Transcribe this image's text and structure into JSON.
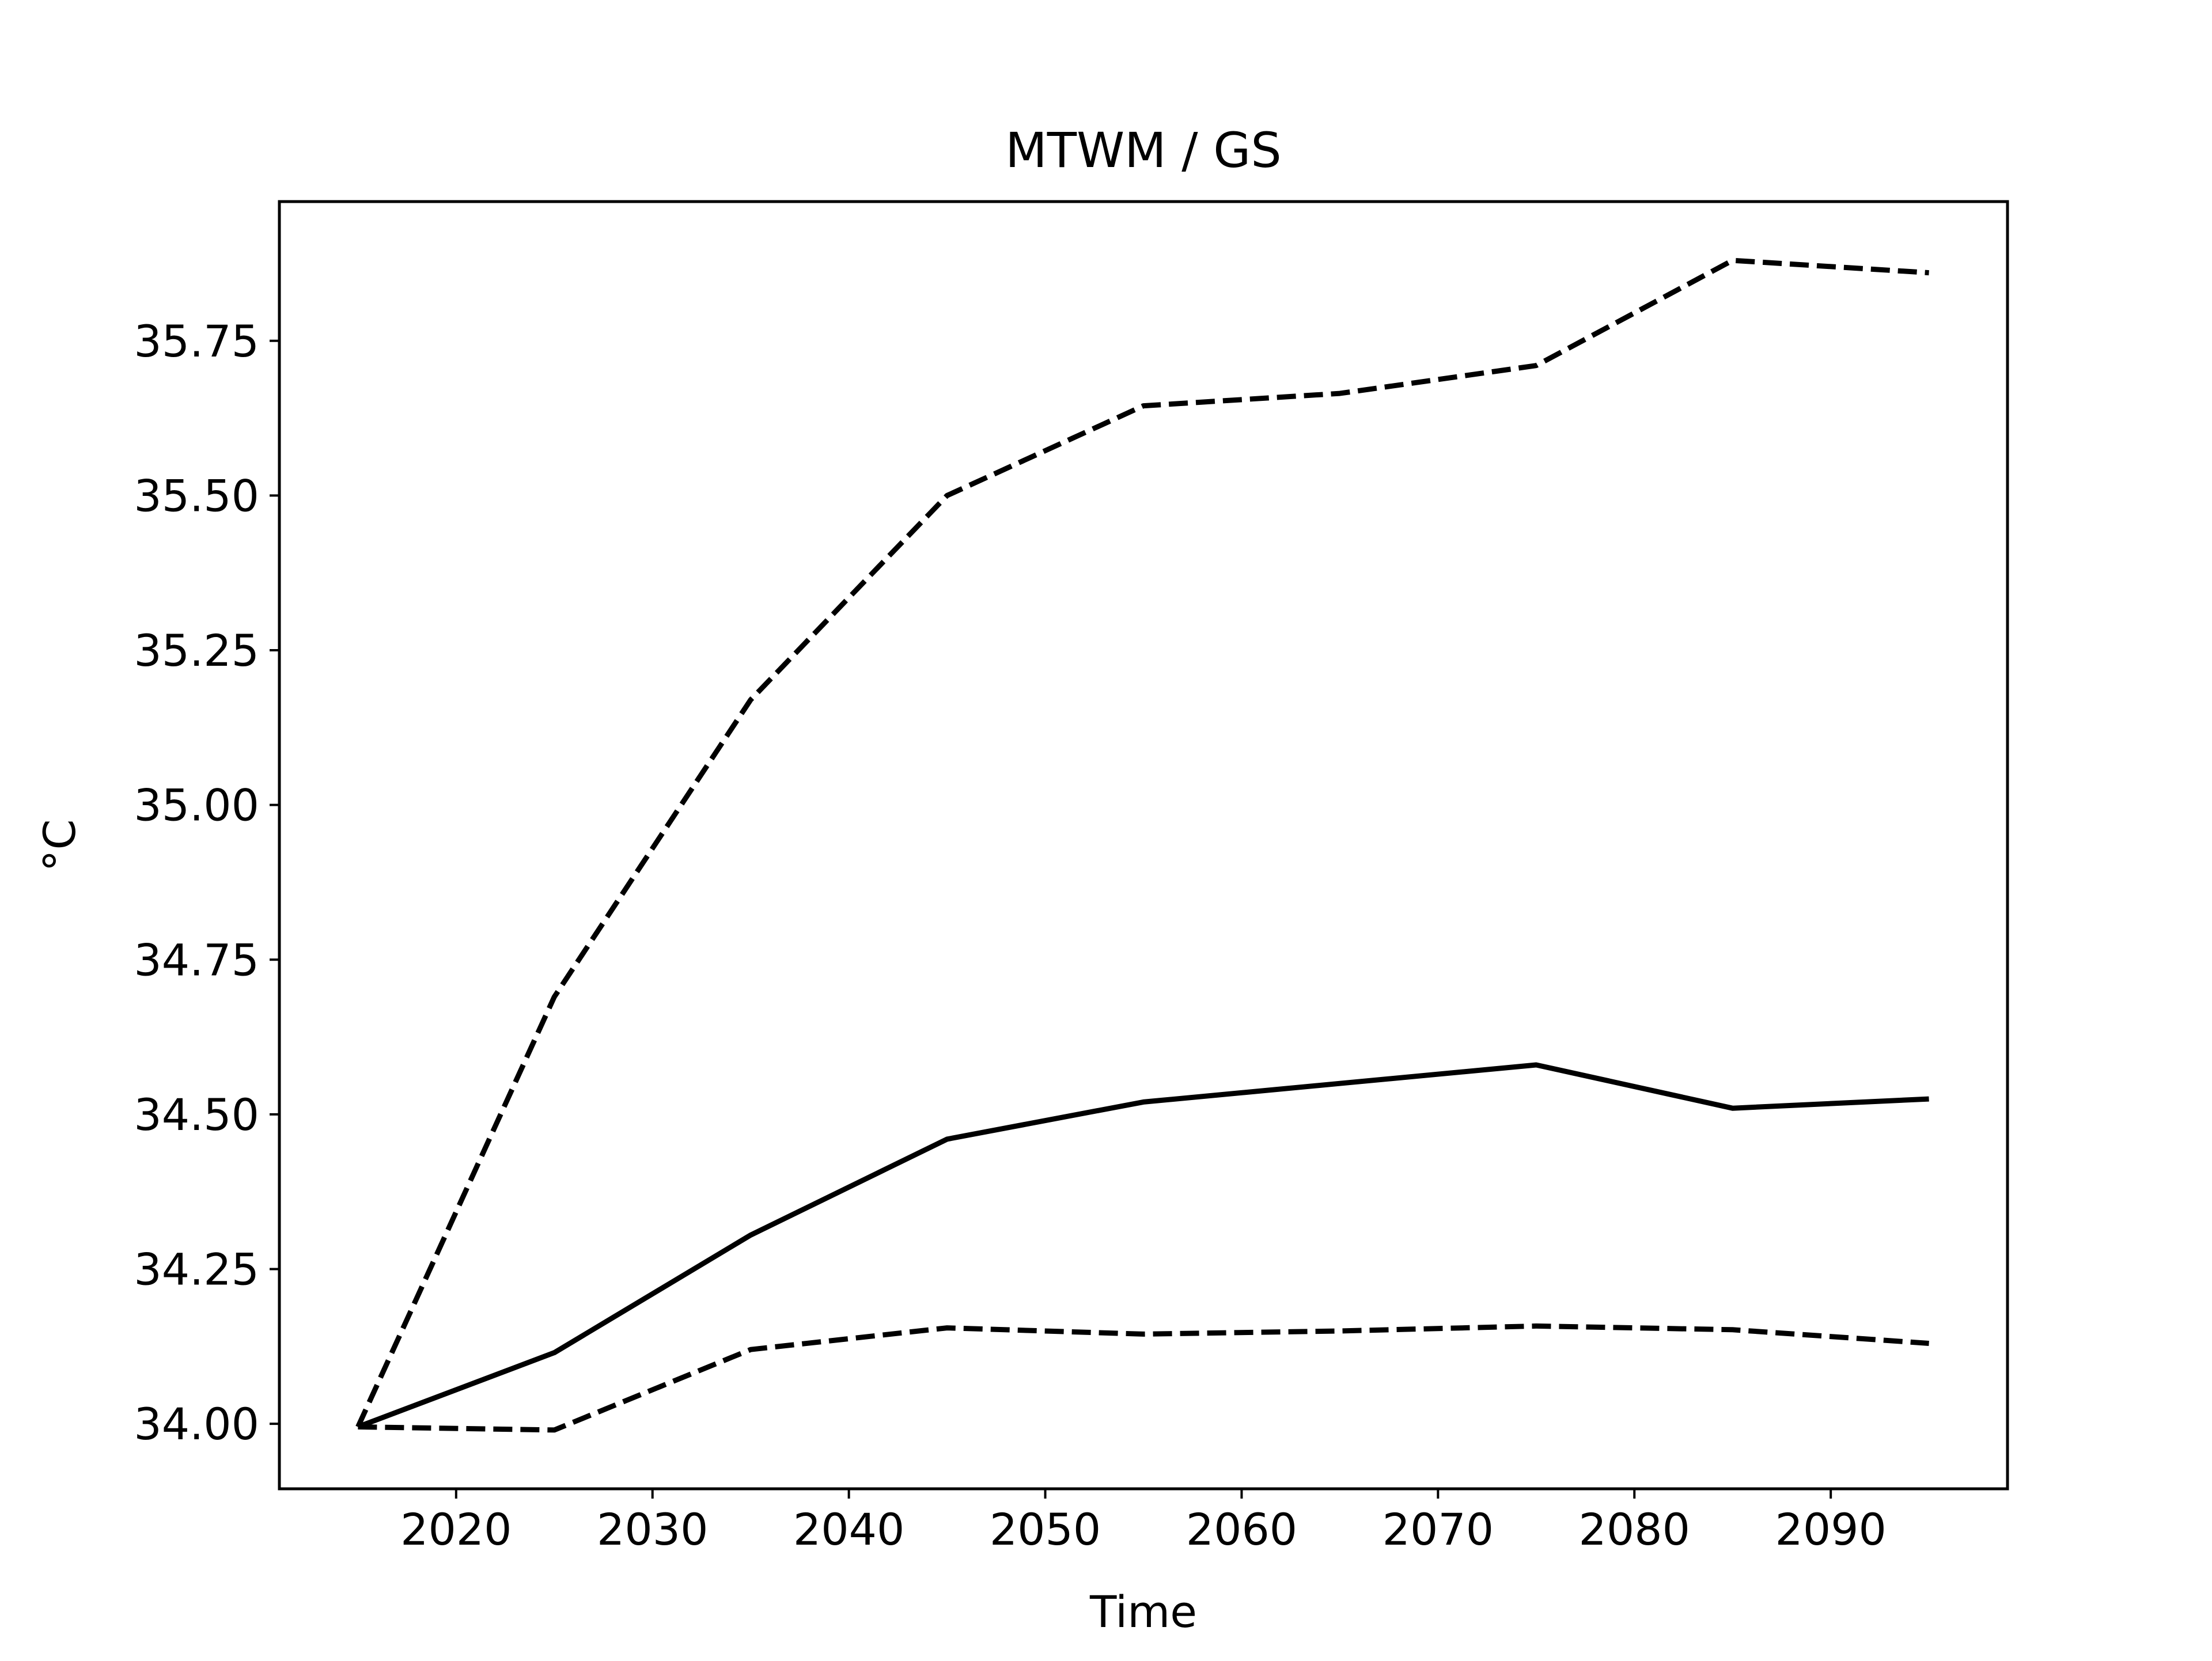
{
  "chart_data": {
    "type": "line",
    "title": "MTWM / GS",
    "xlabel": "Time",
    "ylabel": "°C",
    "xlim": [
      2011,
      2099
    ],
    "ylim": [
      33.895,
      35.975
    ],
    "xticks": [
      2020,
      2030,
      2040,
      2050,
      2060,
      2070,
      2080,
      2090
    ],
    "yticks": [
      34.0,
      34.25,
      34.5,
      34.75,
      35.0,
      35.25,
      35.5,
      35.75
    ],
    "ytick_decimals": 2,
    "grid": false,
    "legend": "none",
    "x": [
      2015,
      2025,
      2035,
      2045,
      2055,
      2065,
      2075,
      2085,
      2095
    ],
    "series": [
      {
        "style": "dashed",
        "color": "#000000",
        "values": [
          33.995,
          34.69,
          35.17,
          35.5,
          35.645,
          35.665,
          35.71,
          35.88,
          35.86
        ]
      },
      {
        "style": "solid",
        "color": "#000000",
        "values": [
          33.995,
          34.115,
          34.305,
          34.46,
          34.52,
          34.55,
          34.58,
          34.51,
          34.525
        ]
      },
      {
        "style": "dashed",
        "color": "#000000",
        "values": [
          33.995,
          33.99,
          34.12,
          34.155,
          34.145,
          34.15,
          34.158,
          34.152,
          34.13
        ]
      }
    ]
  }
}
